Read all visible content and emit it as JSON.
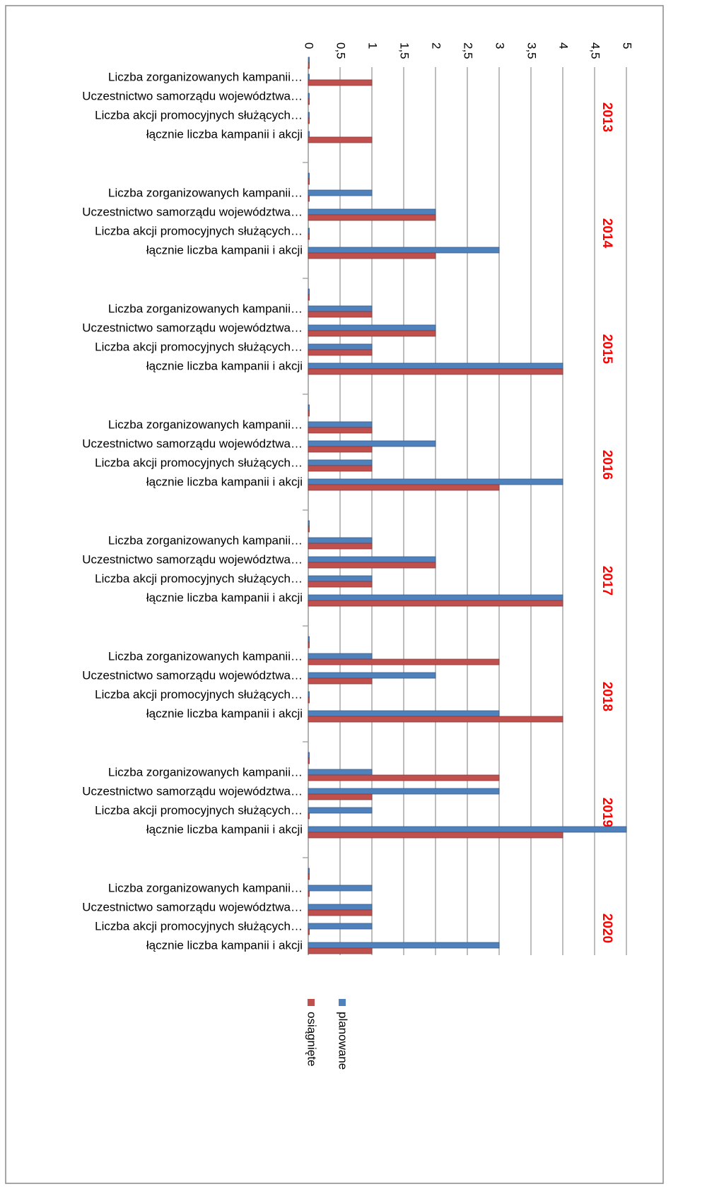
{
  "chart_data": {
    "type": "bar",
    "orientation": "horizontal",
    "groups": [
      "2013",
      "2014",
      "2015",
      "2016",
      "2017",
      "2018",
      "2019",
      "2020"
    ],
    "categories": [
      null,
      "Liczba zorganizowanych kampanii…",
      "Uczestnictwo samorządu województwa…",
      "Liczba akcji promocyjnych służących…",
      "łącznie liczba kampanii i akcji",
      null,
      "Liczba zorganizowanych kampanii…",
      "Uczestnictwo samorządu województwa…",
      "Liczba akcji promocyjnych służących…",
      "łącznie liczba kampanii i akcji",
      null,
      "Liczba zorganizowanych kampanii…",
      "Uczestnictwo samorządu województwa…",
      "Liczba akcji promocyjnych służących…",
      "łącznie liczba kampanii i akcji",
      null,
      "Liczba zorganizowanych kampanii…",
      "Uczestnictwo samorządu województwa…",
      "Liczba akcji promocyjnych służących…",
      "łącznie liczba kampanii i akcji",
      null,
      "Liczba zorganizowanych kampanii…",
      "Uczestnictwo samorządu województwa…",
      "Liczba akcji promocyjnych służących…",
      "łącznie liczba kampanii i akcji",
      null,
      "Liczba zorganizowanych kampanii…",
      "Uczestnictwo samorządu województwa…",
      "Liczba akcji promocyjnych służących…",
      "łącznie liczba kampanii i akcji",
      null,
      "Liczba zorganizowanych kampanii…",
      "Uczestnictwo samorządu województwa…",
      "Liczba akcji promocyjnych służących…",
      "łącznie liczba kampanii i akcji",
      null,
      "Liczba zorganizowanych kampanii…",
      "Uczestnictwo samorządu województwa…",
      "Liczba akcji promocyjnych służących…",
      "łącznie liczba kampanii i akcji"
    ],
    "series": [
      {
        "name": "planowane",
        "color": "#4f81bd",
        "values": [
          0,
          0,
          0,
          0,
          0,
          0,
          1,
          2,
          0,
          3,
          0,
          1,
          2,
          1,
          4,
          0,
          1,
          2,
          1,
          4,
          0,
          1,
          2,
          1,
          4,
          0,
          1,
          2,
          0,
          3,
          0,
          1,
          3,
          1,
          5,
          0,
          1,
          1,
          1,
          3
        ]
      },
      {
        "name": "osiągnięte",
        "color": "#c0504d",
        "values": [
          0,
          1,
          0,
          0,
          1,
          0,
          0,
          2,
          0,
          2,
          0,
          1,
          2,
          1,
          4,
          0,
          1,
          1,
          1,
          3,
          0,
          1,
          2,
          1,
          4,
          0,
          3,
          1,
          0,
          4,
          0,
          3,
          1,
          0,
          4,
          0,
          0,
          1,
          0,
          1
        ]
      }
    ],
    "xlim": [
      0,
      5
    ],
    "xticks": [
      0,
      {
        "value": 0.5,
        "label": "0,5"
      },
      1,
      {
        "value": 1.5,
        "label": "1,5"
      },
      2,
      {
        "value": 2.5,
        "label": "2,5"
      },
      3,
      {
        "value": 3.5,
        "label": "3,5"
      },
      4,
      {
        "value": 4.5,
        "label": "4,5"
      },
      5
    ],
    "grid": true,
    "legend": "bottom"
  }
}
